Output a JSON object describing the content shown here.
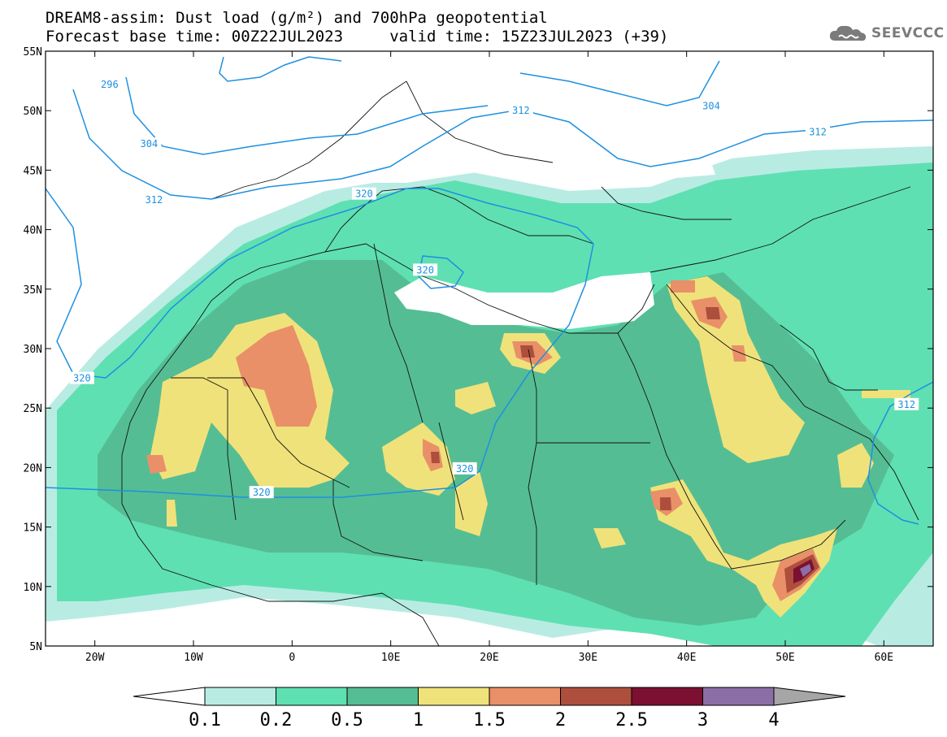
{
  "title": {
    "line1": "DREAM8-assim: Dust load (g/m²) and 700hPa geopotential",
    "line2": "Forecast base time: 00Z22JUL2023     valid time: 15Z23JUL2023 (+39)"
  },
  "logo": {
    "text": "SEEVCCC",
    "icon": "cloud-logo-icon",
    "color": "#7b7b7b"
  },
  "map": {
    "lat_range": [
      5,
      55
    ],
    "lon_range": [
      -25,
      65
    ],
    "lat_ticks": [
      {
        "value": 55,
        "label": "55N"
      },
      {
        "value": 50,
        "label": "50N"
      },
      {
        "value": 45,
        "label": "45N"
      },
      {
        "value": 40,
        "label": "40N"
      },
      {
        "value": 35,
        "label": "35N"
      },
      {
        "value": 30,
        "label": "30N"
      },
      {
        "value": 25,
        "label": "25N"
      },
      {
        "value": 20,
        "label": "20N"
      },
      {
        "value": 15,
        "label": "15N"
      },
      {
        "value": 10,
        "label": "10N"
      },
      {
        "value": 5,
        "label": "5N"
      }
    ],
    "lon_ticks": [
      {
        "value": -20,
        "label": "20W"
      },
      {
        "value": -10,
        "label": "10W"
      },
      {
        "value": 0,
        "label": "0"
      },
      {
        "value": 10,
        "label": "10E"
      },
      {
        "value": 20,
        "label": "20E"
      },
      {
        "value": 30,
        "label": "30E"
      },
      {
        "value": 40,
        "label": "40E"
      },
      {
        "value": 50,
        "label": "50E"
      },
      {
        "value": 60,
        "label": "60E"
      }
    ],
    "contour_labels": [
      {
        "text": "296",
        "lon": -18.5,
        "lat": 52.2
      },
      {
        "text": "304",
        "lon": -14.5,
        "lat": 47.2
      },
      {
        "text": "304",
        "lon": 42.5,
        "lat": 50.4
      },
      {
        "text": "312",
        "lon": 23.2,
        "lat": 50.0
      },
      {
        "text": "312",
        "lon": -14.0,
        "lat": 42.5
      },
      {
        "text": "312",
        "lon": 53.3,
        "lat": 48.2
      },
      {
        "text": "312",
        "lon": 62.3,
        "lat": 25.3
      },
      {
        "text": "320",
        "lon": 7.3,
        "lat": 43.0
      },
      {
        "text": "320",
        "lon": 13.5,
        "lat": 36.6
      },
      {
        "text": "320",
        "lon": -21.3,
        "lat": 27.5
      },
      {
        "text": "320",
        "lon": 17.5,
        "lat": 19.9
      },
      {
        "text": "320",
        "lon": -3.1,
        "lat": 17.9
      }
    ]
  },
  "colorbar": {
    "ticks": [
      "0.1",
      "0.2",
      "0.5",
      "1",
      "1.5",
      "2",
      "2.5",
      "3",
      "4"
    ],
    "colors": [
      "#ffffff",
      "#b8ece3",
      "#5fe0b2",
      "#55bd94",
      "#f0e27a",
      "#e99068",
      "#ad4f3c",
      "#7c1032",
      "#8b6ea6",
      "#a6a6a6"
    ]
  }
}
